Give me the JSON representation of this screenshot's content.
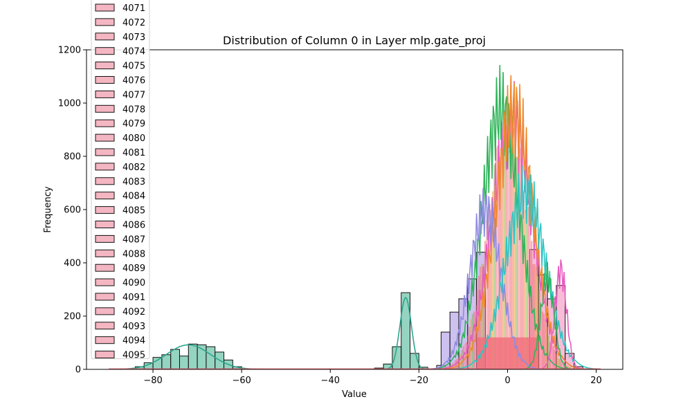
{
  "chart_data": {
    "type": "bar",
    "title": "Distribution of Column 0 in Layer mlp.gate_proj",
    "xlabel": "Value",
    "ylabel": "Frequency",
    "xlim": [
      -95,
      26
    ],
    "ylim": [
      0,
      1200
    ],
    "xticks": [
      -80,
      -60,
      -40,
      -20,
      0,
      20
    ],
    "yticks": [
      0,
      200,
      400,
      600,
      800,
      1000,
      1200
    ],
    "grid": false,
    "legend_placement": "upper-left (overflowing above the axes)",
    "legend_entries": [
      "4071",
      "4072",
      "4073",
      "4074",
      "4075",
      "4076",
      "4077",
      "4078",
      "4079",
      "4080",
      "4081",
      "4082",
      "4083",
      "4084",
      "4085",
      "4086",
      "4087",
      "4088",
      "4089",
      "4090",
      "4091",
      "4092",
      "4093",
      "4094",
      "4095"
    ],
    "series": [
      {
        "name": "teal histogram",
        "color": "#66c2a5",
        "bin_width": 2,
        "bins": [
          {
            "x": -84,
            "y": 10
          },
          {
            "x": -82,
            "y": 25
          },
          {
            "x": -80,
            "y": 45
          },
          {
            "x": -78,
            "y": 55
          },
          {
            "x": -76,
            "y": 75
          },
          {
            "x": -74,
            "y": 50
          },
          {
            "x": -72,
            "y": 95
          },
          {
            "x": -70,
            "y": 92
          },
          {
            "x": -68,
            "y": 85
          },
          {
            "x": -66,
            "y": 65
          },
          {
            "x": -64,
            "y": 35
          },
          {
            "x": -62,
            "y": 10
          },
          {
            "x": -30,
            "y": 5
          },
          {
            "x": -28,
            "y": 20
          },
          {
            "x": -26,
            "y": 85
          },
          {
            "x": -24,
            "y": 288
          },
          {
            "x": -22,
            "y": 60
          },
          {
            "x": -20,
            "y": 8
          }
        ]
      },
      {
        "name": "purple histogram",
        "color": "#b8a6e8",
        "bin_width": 2,
        "bins": [
          {
            "x": -16,
            "y": 15
          },
          {
            "x": -15,
            "y": 140
          },
          {
            "x": -13,
            "y": 215
          },
          {
            "x": -11,
            "y": 265
          },
          {
            "x": -9,
            "y": 340
          },
          {
            "x": -7,
            "y": 440
          }
        ]
      },
      {
        "name": "pink histogram",
        "color": "#f5a0c8",
        "bin_width": 2,
        "bins": [
          {
            "x": 5,
            "y": 450
          },
          {
            "x": 7,
            "y": 355
          },
          {
            "x": 9,
            "y": 265
          },
          {
            "x": 11,
            "y": 315
          },
          {
            "x": 13,
            "y": 60
          },
          {
            "x": 15,
            "y": 10
          }
        ]
      }
    ],
    "core": {
      "name": "overlapping central histograms",
      "color": "#f26b7a",
      "center": 0,
      "peak": 1000,
      "sigma": 4.6
    },
    "kde_curves": [
      {
        "color": "#2ca58d",
        "type": "gauss-mix",
        "components": [
          {
            "mu": -72,
            "sigma": 5,
            "amp": 92
          },
          {
            "mu": -23,
            "sigma": 1.3,
            "amp": 270
          }
        ]
      },
      {
        "color": "#e75bbf",
        "type": "gauss",
        "mu": 1,
        "sigma": 4.5,
        "amp": 1100
      },
      {
        "color": "#2fb45a",
        "type": "gauss",
        "mu": -1.5,
        "sigma": 4.2,
        "amp": 1145
      },
      {
        "color": "#f08a2c",
        "type": "gauss",
        "mu": 1.5,
        "sigma": 4.3,
        "amp": 1135
      },
      {
        "color": "#8e8be0",
        "type": "gauss",
        "mu": -5,
        "sigma": 3.5,
        "amp": 700
      },
      {
        "color": "#2ec4c4",
        "type": "gauss",
        "mu": 4,
        "sigma": 4.5,
        "amp": 780
      },
      {
        "color": "#e75bbf",
        "type": "gauss",
        "mu": 12,
        "sigma": 1.3,
        "amp": 440
      },
      {
        "color": "#2fb45a",
        "type": "gauss",
        "mu": 9,
        "sigma": 1.5,
        "amp": 410
      }
    ]
  }
}
